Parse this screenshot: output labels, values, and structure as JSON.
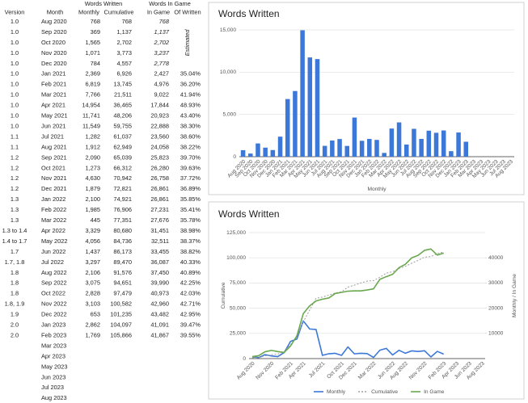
{
  "table": {
    "group_headers": [
      "Words Written",
      "Words In Game"
    ],
    "columns": [
      "Version",
      "Month",
      "Monthly",
      "Cumulative",
      "In Game",
      "Of Written"
    ],
    "note": "Estimated",
    "rows": [
      [
        "1.0",
        "Aug  2020",
        "768",
        "768",
        "768",
        null
      ],
      [
        "1.0",
        "Sep  2020",
        "369",
        "1,137",
        "1,137",
        null
      ],
      [
        "1.0",
        "Oct  2020",
        "1,565",
        "2,702",
        "2,702",
        null
      ],
      [
        "1.0",
        "Nov  2020",
        "1,071",
        "3,773",
        "3,237",
        null
      ],
      [
        "1.0",
        "Dec  2020",
        "784",
        "4,557",
        "2,778",
        null
      ],
      [
        "1.0",
        "Jan  2021",
        "2,369",
        "6,926",
        "2,427",
        "35.04%"
      ],
      [
        "1.0",
        "Feb  2021",
        "6,819",
        "13,745",
        "4,976",
        "36.20%"
      ],
      [
        "1.0",
        "Mar  2021",
        "7,766",
        "21,511",
        "9,022",
        "41.94%"
      ],
      [
        "1.0",
        "Apr  2021",
        "14,954",
        "36,465",
        "17,844",
        "48.93%"
      ],
      [
        "1.0",
        "May  2021",
        "11,741",
        "48,206",
        "20,923",
        "43.40%"
      ],
      [
        "1.0",
        "Jun  2021",
        "11,549",
        "59,755",
        "22,888",
        "38.30%"
      ],
      [
        "1.1",
        "Jul  2021",
        "1,282",
        "61,037",
        "23,560",
        "38.60%"
      ],
      [
        "1.1",
        "Aug  2021",
        "1,912",
        "62,949",
        "24,058",
        "38.22%"
      ],
      [
        "1.2",
        "Sep  2021",
        "2,090",
        "65,039",
        "25,823",
        "39.70%"
      ],
      [
        "1.2",
        "Oct  2021",
        "1,273",
        "66,312",
        "26,280",
        "39.63%"
      ],
      [
        "1.2",
        "Nov  2021",
        "4,630",
        "70,942",
        "26,758",
        "37.72%"
      ],
      [
        "1.2",
        "Dec  2021",
        "1,879",
        "72,821",
        "26,861",
        "36.89%"
      ],
      [
        "1.3",
        "Jan  2022",
        "2,100",
        "74,921",
        "26,861",
        "35.85%"
      ],
      [
        "1.3",
        "Feb  2022",
        "1,985",
        "76,906",
        "27,231",
        "35.41%"
      ],
      [
        "1.3",
        "Mar  2022",
        "445",
        "77,351",
        "27,676",
        "35.78%"
      ],
      [
        "1.3 to 1.4",
        "Apr  2022",
        "3,329",
        "80,680",
        "31,451",
        "38.98%"
      ],
      [
        "1.4 to 1.7",
        "May  2022",
        "4,056",
        "84,736",
        "32,511",
        "38.37%"
      ],
      [
        "1.7",
        "Jun  2022",
        "1,437",
        "86,173",
        "33,455",
        "38.82%"
      ],
      [
        "1.7, 1.8",
        "Jul  2022",
        "3,297",
        "89,470",
        "36,087",
        "40.33%"
      ],
      [
        "1.8",
        "Aug  2022",
        "2,106",
        "91,576",
        "37,450",
        "40.89%"
      ],
      [
        "1.8",
        "Sep  2022",
        "3,075",
        "94,651",
        "39,990",
        "42.25%"
      ],
      [
        "1.8",
        "Oct  2022",
        "2,828",
        "97,479",
        "40,973",
        "42.03%"
      ],
      [
        "1.8, 1.9",
        "Nov  2022",
        "3,103",
        "100,582",
        "42,960",
        "42.71%"
      ],
      [
        "1.9",
        "Dec  2022",
        "653",
        "101,235",
        "43,482",
        "42.95%"
      ],
      [
        "2.0",
        "Jan  2023",
        "2,862",
        "104,097",
        "41,091",
        "39.47%"
      ],
      [
        "2.0",
        "Feb  2023",
        "1,769",
        "105,866",
        "41,867",
        "39.55%"
      ],
      [
        null,
        "Mar  2023",
        null,
        null,
        null,
        null
      ],
      [
        null,
        "Apr  2023",
        null,
        null,
        null,
        null
      ],
      [
        null,
        "May  2023",
        null,
        null,
        null,
        null
      ],
      [
        null,
        "Jun  2023",
        null,
        null,
        null,
        null
      ],
      [
        null,
        "Jul  2023",
        null,
        null,
        null,
        null
      ],
      [
        null,
        "Aug  2023",
        null,
        null,
        null,
        null
      ]
    ]
  },
  "chart_data": [
    {
      "type": "bar",
      "title": "Words Written",
      "x_label": "Monthly",
      "color": "#3c78d8",
      "grid": true,
      "categories": [
        "Aug 2020",
        "Sep 2020",
        "Oct 2020",
        "Nov 2020",
        "Dec 2020",
        "Jan 2021",
        "Feb 2021",
        "Mar 2021",
        "Apr 2021",
        "May 2021",
        "Jun 2021",
        "Jul 2021",
        "Aug 2021",
        "Sep 2021",
        "Oct 2021",
        "Nov 2021",
        "Dec 2021",
        "Jan 2022",
        "Feb 2022",
        "Mar 2022",
        "Apr 2022",
        "May 2022",
        "Jun 2022",
        "Jul 2022",
        "Aug 2022",
        "Sep 2022",
        "Oct 2022",
        "Nov 2022",
        "Dec 2022",
        "Jan 2023",
        "Feb 2023",
        "Mar 2023",
        "Apr 2023",
        "May 2023",
        "Jun 2023",
        "Jul 2023",
        "Aug 2023"
      ],
      "values": [
        768,
        369,
        1565,
        1071,
        784,
        2369,
        6819,
        7766,
        14954,
        11741,
        11549,
        1282,
        1912,
        2090,
        1273,
        4630,
        1879,
        2100,
        1985,
        445,
        3329,
        4056,
        1437,
        3297,
        2106,
        3075,
        2828,
        3103,
        653,
        2862,
        1769,
        null,
        null,
        null,
        null,
        null,
        null
      ],
      "ylim": [
        0,
        15000
      ],
      "yticks": [
        0,
        {
          "value": 5000,
          "label": "5,000"
        },
        {
          "value": 10000,
          "label": "10,000"
        },
        {
          "value": 15000,
          "label": "15,000"
        }
      ]
    },
    {
      "type": "line",
      "title": "Words Written",
      "y_label": "Cumulative",
      "y2_label": "Monthly / In Game",
      "grid": true,
      "legend": "bottom",
      "categories": [
        "Aug 2020",
        null,
        null,
        "Nov 2020",
        null,
        null,
        "Feb 2021",
        null,
        "Apr 2021",
        null,
        null,
        "Jul 2021",
        null,
        null,
        "Oct 2021",
        null,
        "Dec 2021",
        null,
        null,
        "Mar 2022",
        null,
        null,
        "Jun 2022",
        null,
        "Aug 2022",
        null,
        null,
        "Nov 2022",
        null,
        null,
        "Feb 2023",
        null,
        "Apr 2023",
        null,
        "Jun 2023",
        null,
        "Aug 2023"
      ],
      "series": [
        {
          "name": "Monthly",
          "color": "#3c78d8",
          "axis": "y2",
          "values": [
            768,
            369,
            1565,
            1071,
            784,
            2369,
            6819,
            7766,
            14954,
            11741,
            11549,
            1282,
            1912,
            2090,
            1273,
            4630,
            1879,
            2100,
            1985,
            445,
            3329,
            4056,
            1437,
            3297,
            2106,
            3075,
            2828,
            3103,
            653,
            2862,
            1769,
            null,
            null,
            null,
            null,
            null,
            null
          ]
        },
        {
          "name": "Cumulative",
          "color": "#9e9e9e",
          "axis": "y",
          "values": [
            768,
            1137,
            2702,
            3773,
            4557,
            6926,
            13745,
            21511,
            36465,
            48206,
            59755,
            61037,
            62949,
            65039,
            66312,
            70942,
            72821,
            74921,
            76906,
            77351,
            80680,
            84736,
            86173,
            89470,
            91576,
            94651,
            97479,
            100582,
            101235,
            104097,
            105866,
            null,
            null,
            null,
            null,
            null,
            null
          ]
        },
        {
          "name": "In Game",
          "color": "#6aa84f",
          "axis": "y2",
          "values": [
            768,
            1137,
            2702,
            3237,
            2778,
            2427,
            4976,
            9022,
            17844,
            20923,
            22888,
            23560,
            24058,
            25823,
            26280,
            26758,
            26861,
            26861,
            27231,
            27676,
            31451,
            32511,
            33455,
            36087,
            37450,
            39990,
            40973,
            42960,
            43482,
            41091,
            41867,
            null,
            null,
            null,
            null,
            null,
            null
          ]
        }
      ],
      "ylim": [
        0,
        125000
      ],
      "yticks": [
        0,
        {
          "value": 25000,
          "label": "25,000"
        },
        {
          "value": 50000,
          "label": "50,000"
        },
        {
          "value": 75000,
          "label": "75,000"
        },
        {
          "value": 100000,
          "label": "100,000"
        },
        {
          "value": 125000,
          "label": "125,000"
        }
      ],
      "y2lim": [
        0,
        50000
      ],
      "y2ticks": [
        10000,
        20000,
        30000,
        40000
      ]
    }
  ]
}
